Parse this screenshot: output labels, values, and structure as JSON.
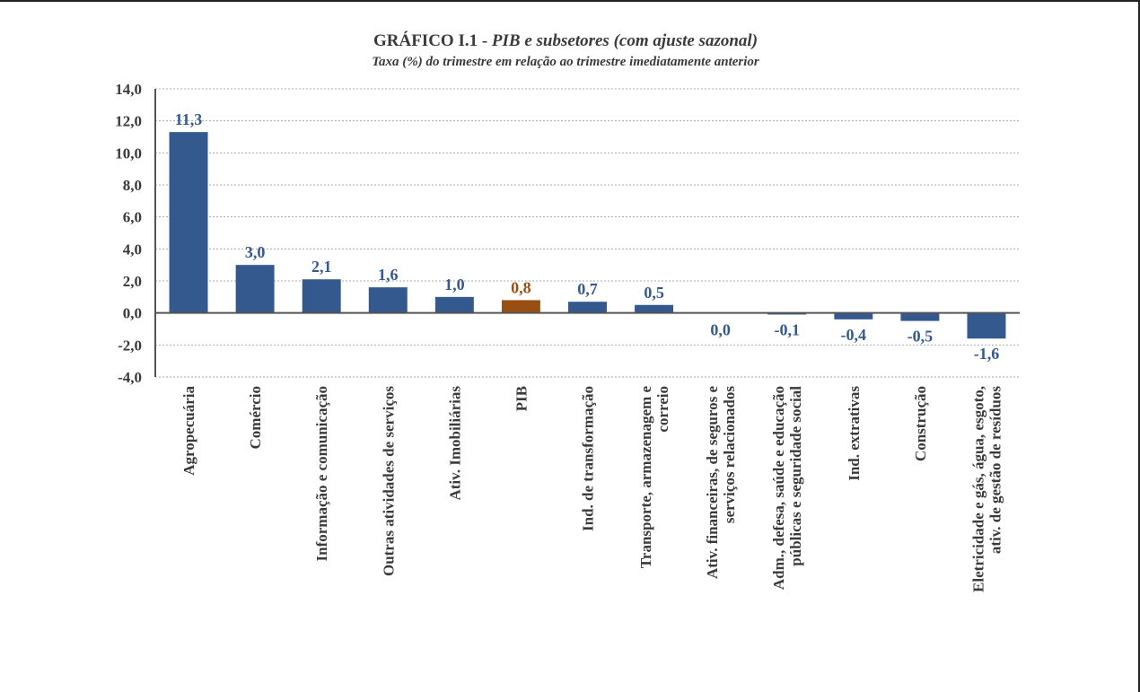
{
  "chart_data": {
    "type": "bar",
    "title_prefix": "GRÁFICO I.1 - ",
    "title_main": "PIB  e subsetores (com ajuste sazonal)",
    "subtitle": "Taxa (%) do trimestre em relação ao trimestre imediatamente anterior",
    "xlabel": "",
    "ylabel": "",
    "ylim": [
      -4,
      14
    ],
    "yticks": [
      "14,0",
      "12,0",
      "10,0",
      "8,0",
      "6,0",
      "4,0",
      "2,0",
      "0,0",
      "-2,0",
      "-4,0"
    ],
    "grid": true,
    "categories": [
      [
        "Agropecuária"
      ],
      [
        "Comércio"
      ],
      [
        "Informação e comunicação"
      ],
      [
        "Outras atividades de serviços"
      ],
      [
        "Ativ. Imobiliárias"
      ],
      [
        "PIB"
      ],
      [
        "Ind. de transformação"
      ],
      [
        "Transporte, armazenagem e",
        "correio"
      ],
      [
        "Ativ. financeiras, de seguros e",
        "serviços relacionados"
      ],
      [
        "Adm., defesa, saúde e educação",
        "públicas e seguridade social"
      ],
      [
        "Ind. extrativas"
      ],
      [
        "Construção"
      ],
      [
        "Eletricidade e gás, água, esgoto,",
        "ativ. de gestão de resíduos"
      ]
    ],
    "values": [
      11.3,
      3.0,
      2.1,
      1.6,
      1.0,
      0.8,
      0.7,
      0.5,
      0.0,
      -0.1,
      -0.4,
      -0.5,
      -1.6
    ],
    "data_labels": [
      "11,3",
      "3,0",
      "2,1",
      "1,6",
      "1,0",
      "0,8",
      "0,7",
      "0,5",
      "0,0",
      "-0,1",
      "-0,4",
      "-0,5",
      "-1,6"
    ],
    "colors": {
      "bar": "#34598f",
      "highlight": "#9a4f12",
      "label": "#34598f",
      "highlight_label": "#9a4f12",
      "grid": "#a8a8a8",
      "axis": "#555555"
    },
    "highlight_category": "PIB"
  }
}
